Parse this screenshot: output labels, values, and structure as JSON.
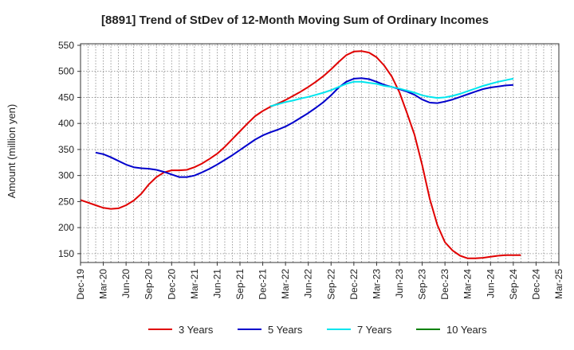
{
  "chart_data": {
    "type": "line",
    "title": "[8891]  Trend of StDev of 12-Month Moving Sum of Ordinary Incomes",
    "xlabel": "",
    "ylabel": "Amount (million yen)",
    "ylim": [
      133,
      553
    ],
    "yticks": [
      150,
      200,
      250,
      300,
      350,
      400,
      450,
      500,
      550
    ],
    "ytick_labels": [
      "150",
      "200",
      "250",
      "300",
      "350",
      "400",
      "450",
      "500",
      "550"
    ],
    "xlim": [
      0,
      63
    ],
    "xtick_positions": [
      0,
      3,
      6,
      9,
      12,
      15,
      18,
      21,
      24,
      27,
      30,
      33,
      36,
      39,
      42,
      45,
      48,
      51,
      54,
      57,
      60,
      63
    ],
    "xtick_labels": [
      "Dec-19",
      "Mar-20",
      "Jun-20",
      "Sep-20",
      "Dec-20",
      "Mar-21",
      "Jun-21",
      "Sep-21",
      "Dec-21",
      "Mar-22",
      "Jun-22",
      "Sep-22",
      "Dec-22",
      "Mar-23",
      "Jun-23",
      "Sep-23",
      "Dec-23",
      "Mar-24",
      "Jun-24",
      "Sep-24",
      "Dec-24",
      "Mar-25"
    ],
    "grid": true,
    "legend_position": "bottom",
    "series": [
      {
        "name": "3 Years",
        "color": "#e00000",
        "points": [
          [
            0,
            253
          ],
          [
            1,
            248
          ],
          [
            2,
            243
          ],
          [
            3,
            238
          ],
          [
            4,
            236
          ],
          [
            5,
            237
          ],
          [
            6,
            243
          ],
          [
            7,
            252
          ],
          [
            8,
            265
          ],
          [
            9,
            283
          ],
          [
            10,
            297
          ],
          [
            11,
            306
          ],
          [
            12,
            310
          ],
          [
            13,
            310
          ],
          [
            14,
            311
          ],
          [
            15,
            316
          ],
          [
            16,
            323
          ],
          [
            17,
            332
          ],
          [
            18,
            342
          ],
          [
            19,
            355
          ],
          [
            20,
            370
          ],
          [
            21,
            385
          ],
          [
            22,
            400
          ],
          [
            23,
            414
          ],
          [
            24,
            424
          ],
          [
            25,
            432
          ],
          [
            26,
            438
          ],
          [
            27,
            445
          ],
          [
            28,
            453
          ],
          [
            29,
            461
          ],
          [
            30,
            470
          ],
          [
            31,
            480
          ],
          [
            32,
            491
          ],
          [
            33,
            504
          ],
          [
            34,
            518
          ],
          [
            35,
            531
          ],
          [
            36,
            538
          ],
          [
            37,
            539
          ],
          [
            38,
            536
          ],
          [
            39,
            527
          ],
          [
            40,
            511
          ],
          [
            41,
            490
          ],
          [
            42,
            460
          ],
          [
            43,
            420
          ],
          [
            44,
            378
          ],
          [
            45,
            320
          ],
          [
            46,
            255
          ],
          [
            47,
            205
          ],
          [
            48,
            172
          ],
          [
            49,
            156
          ],
          [
            50,
            146
          ],
          [
            51,
            141
          ],
          [
            52,
            141
          ],
          [
            53,
            142
          ],
          [
            54,
            144
          ],
          [
            55,
            146
          ],
          [
            56,
            147
          ],
          [
            57,
            147
          ],
          [
            58,
            147
          ]
        ]
      },
      {
        "name": "5 Years",
        "color": "#0000cc",
        "points": [
          [
            2,
            344
          ],
          [
            3,
            341
          ],
          [
            4,
            335
          ],
          [
            5,
            328
          ],
          [
            6,
            321
          ],
          [
            7,
            316
          ],
          [
            8,
            314
          ],
          [
            9,
            313
          ],
          [
            10,
            311
          ],
          [
            11,
            307
          ],
          [
            12,
            302
          ],
          [
            13,
            297
          ],
          [
            14,
            297
          ],
          [
            15,
            300
          ],
          [
            16,
            306
          ],
          [
            17,
            313
          ],
          [
            18,
            321
          ],
          [
            19,
            330
          ],
          [
            20,
            339
          ],
          [
            21,
            349
          ],
          [
            22,
            359
          ],
          [
            23,
            369
          ],
          [
            24,
            377
          ],
          [
            25,
            383
          ],
          [
            26,
            388
          ],
          [
            27,
            394
          ],
          [
            28,
            402
          ],
          [
            29,
            411
          ],
          [
            30,
            420
          ],
          [
            31,
            430
          ],
          [
            32,
            441
          ],
          [
            33,
            454
          ],
          [
            34,
            469
          ],
          [
            35,
            480
          ],
          [
            36,
            486
          ],
          [
            37,
            487
          ],
          [
            38,
            485
          ],
          [
            39,
            480
          ],
          [
            40,
            474
          ],
          [
            41,
            470
          ],
          [
            42,
            466
          ],
          [
            43,
            461
          ],
          [
            44,
            455
          ],
          [
            45,
            446
          ],
          [
            46,
            440
          ],
          [
            47,
            439
          ],
          [
            48,
            442
          ],
          [
            49,
            446
          ],
          [
            50,
            451
          ],
          [
            51,
            456
          ],
          [
            52,
            461
          ],
          [
            53,
            466
          ],
          [
            54,
            469
          ],
          [
            55,
            471
          ],
          [
            56,
            473
          ],
          [
            57,
            474
          ]
        ]
      },
      {
        "name": "7 Years",
        "color": "#00e5ee",
        "points": [
          [
            25,
            433
          ],
          [
            26,
            437
          ],
          [
            27,
            441
          ],
          [
            28,
            444
          ],
          [
            29,
            448
          ],
          [
            30,
            451
          ],
          [
            31,
            455
          ],
          [
            32,
            459
          ],
          [
            33,
            464
          ],
          [
            34,
            470
          ],
          [
            35,
            476
          ],
          [
            36,
            480
          ],
          [
            37,
            480
          ],
          [
            38,
            478
          ],
          [
            39,
            476
          ],
          [
            40,
            472
          ],
          [
            41,
            470
          ],
          [
            42,
            467
          ],
          [
            43,
            463
          ],
          [
            44,
            459
          ],
          [
            45,
            454
          ],
          [
            46,
            451
          ],
          [
            47,
            449
          ],
          [
            48,
            450
          ],
          [
            49,
            453
          ],
          [
            50,
            457
          ],
          [
            51,
            462
          ],
          [
            52,
            467
          ],
          [
            53,
            472
          ],
          [
            54,
            476
          ],
          [
            55,
            480
          ],
          [
            56,
            483
          ],
          [
            57,
            486
          ]
        ]
      },
      {
        "name": "10 Years",
        "color": "#008000",
        "points": []
      }
    ]
  }
}
